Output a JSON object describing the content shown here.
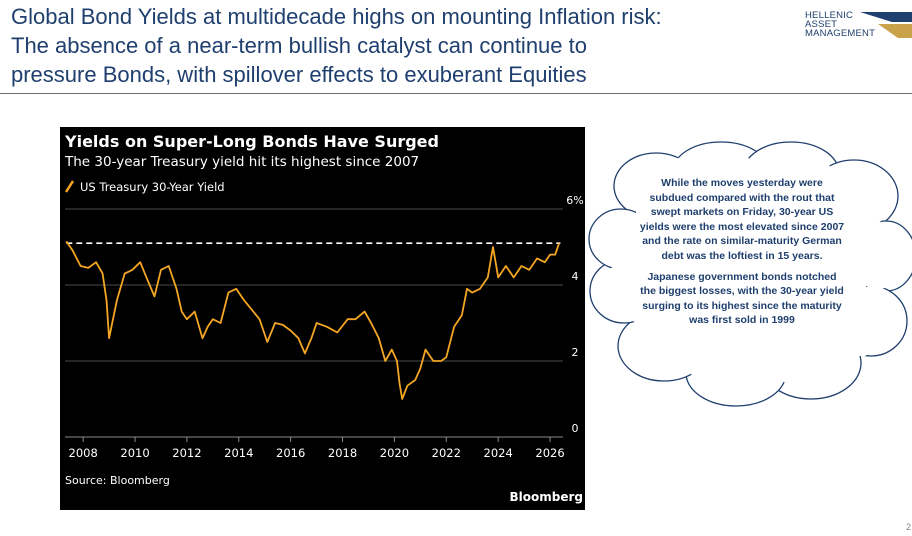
{
  "slide": {
    "title_lines": [
      "Global Bond Yields at multidecade highs on mounting Inflation risk:",
      "The absence of a near-term bullish catalyst can continue to",
      "pressure Bonds, with spillover effects to exuberant Equities"
    ],
    "logo_lines": [
      "HELLENIC",
      "ASSET",
      "MANAGEMENT"
    ],
    "page_number": "2"
  },
  "callout": {
    "paragraphs": [
      "While the moves yesterday were subdued compared with the rout that swept markets on Friday, 30-year US yields were the most elevated since 2007 and the rate on similar-maturity German debt was the loftiest in 15 years.",
      "Japanese government bonds notched the biggest losses, with the 30-year yield surging to its highest since the maturity was first sold in 1999"
    ]
  },
  "colors": {
    "title_blue": "#1f3f6e",
    "chart_background": "#000000",
    "series_orange": "#f5a623",
    "reference_line": "#ffffff",
    "cloud_outline": "#1f3f6e"
  },
  "chart_data": {
    "type": "line",
    "title": "Yields on Super-Long Bonds Have Surged",
    "subtitle": "The 30-year Treasury yield hit its highest since 2007",
    "legend": "US Treasury 30-Year Yield",
    "source": "Source: Bloomberg",
    "brand": "Bloomberg",
    "y_unit_label": "6%",
    "y_ticks": [
      "0",
      "2",
      "4",
      "6%"
    ],
    "x_ticks": [
      "2008",
      "2010",
      "2012",
      "2014",
      "2016",
      "2018",
      "2020",
      "2022",
      "2024",
      "2026"
    ],
    "ylim": [
      0,
      6
    ],
    "xlim": [
      2007.3,
      2026.5
    ],
    "y_axis_position": "right",
    "gridlines": true,
    "reference_line": {
      "y": 5.1,
      "style": "dashed"
    },
    "series": [
      {
        "name": "US Treasury 30-Year Yield",
        "x": [
          2007.35,
          2007.6,
          2007.9,
          2008.2,
          2008.5,
          2008.75,
          2008.9,
          2009.0,
          2009.3,
          2009.6,
          2009.9,
          2010.2,
          2010.5,
          2010.75,
          2011.0,
          2011.3,
          2011.6,
          2011.8,
          2012.0,
          2012.3,
          2012.6,
          2012.8,
          2013.0,
          2013.3,
          2013.6,
          2013.9,
          2014.2,
          2014.5,
          2014.8,
          2015.1,
          2015.4,
          2015.7,
          2016.0,
          2016.3,
          2016.55,
          2016.8,
          2017.0,
          2017.4,
          2017.8,
          2018.2,
          2018.5,
          2018.85,
          2019.1,
          2019.4,
          2019.65,
          2019.9,
          2020.1,
          2020.2,
          2020.3,
          2020.5,
          2020.8,
          2021.0,
          2021.2,
          2021.5,
          2021.8,
          2022.0,
          2022.3,
          2022.6,
          2022.8,
          2023.0,
          2023.3,
          2023.6,
          2023.8,
          2024.0,
          2024.3,
          2024.6,
          2024.9,
          2025.2,
          2025.5,
          2025.8,
          2026.0,
          2026.2,
          2026.35
        ],
        "y": [
          5.15,
          4.9,
          4.5,
          4.45,
          4.6,
          4.3,
          3.6,
          2.6,
          3.6,
          4.3,
          4.4,
          4.6,
          4.1,
          3.7,
          4.4,
          4.5,
          3.9,
          3.3,
          3.1,
          3.3,
          2.6,
          2.9,
          3.1,
          3.0,
          3.8,
          3.9,
          3.6,
          3.35,
          3.1,
          2.5,
          3.0,
          2.95,
          2.8,
          2.6,
          2.2,
          2.6,
          3.0,
          2.9,
          2.75,
          3.1,
          3.1,
          3.3,
          3.0,
          2.6,
          2.0,
          2.3,
          2.0,
          1.4,
          1.0,
          1.35,
          1.5,
          1.8,
          2.3,
          2.0,
          2.0,
          2.1,
          2.9,
          3.2,
          3.9,
          3.8,
          3.9,
          4.2,
          5.0,
          4.2,
          4.5,
          4.2,
          4.5,
          4.4,
          4.7,
          4.6,
          4.8,
          4.8,
          5.1
        ]
      }
    ]
  }
}
